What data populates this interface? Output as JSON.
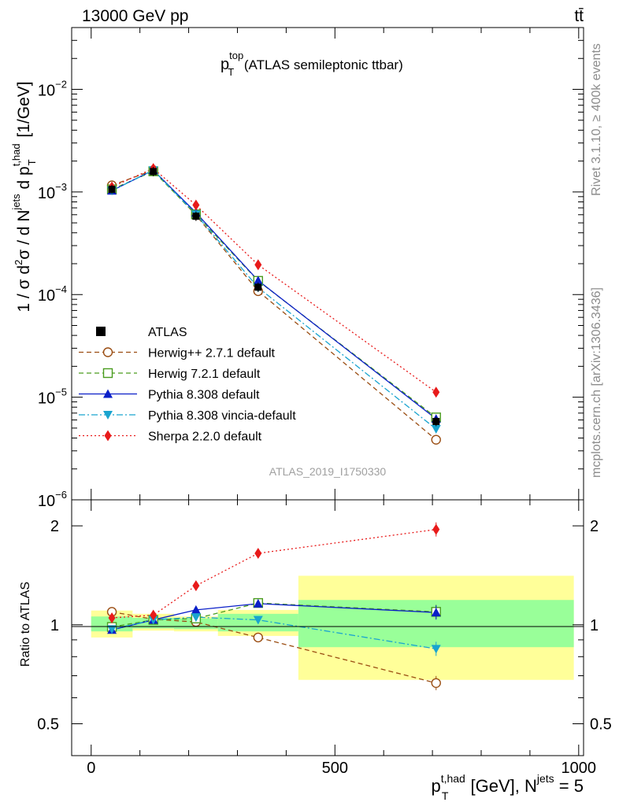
{
  "header": {
    "energy_label": "13000 GeV pp",
    "process_label": "tt̄"
  },
  "side_labels": {
    "rivet": "Rivet 3.1.10, ≥ 400k events",
    "mcplots": "mcplots.cern.ch [arXiv:1306.3436]"
  },
  "chart_data": [
    {
      "type": "line",
      "panel": "main",
      "title": {
        "base": "p",
        "sup": "top",
        "sub": "T",
        "rest": " (ATLAS semileptonic ttbar)"
      },
      "watermark": "ATLAS_2019_I1750330",
      "yscale": "log",
      "ylim": [
        1e-06,
        0.04
      ],
      "xlim": [
        -40,
        1010
      ],
      "ylabel": {
        "part1": "1 / σ d",
        "sup2": "2",
        "part2": "σ /  d N",
        "sup_jets": "jets",
        "part3": " d p",
        "sup_thad": "t,had",
        "sub_T": "T",
        "part4": " [1/GeV]"
      },
      "y_ticks": [
        {
          "value": 1e-06,
          "base": "10",
          "exp": "−6"
        },
        {
          "value": 1e-05,
          "base": "10",
          "exp": "−5"
        },
        {
          "value": 0.0001,
          "base": "10",
          "exp": "−4"
        },
        {
          "value": 0.001,
          "base": "10",
          "exp": "−3"
        },
        {
          "value": 0.01,
          "base": "10",
          "exp": "−2"
        }
      ],
      "x": [
        42.5,
        127.5,
        215,
        342.5,
        707.5
      ],
      "x_edges": [
        0,
        85,
        170,
        260,
        425,
        990
      ],
      "data": {
        "name": "ATLAS",
        "values": [
          0.00106,
          0.00158,
          0.00058,
          0.000118,
          5.8e-06
        ]
      },
      "series": [
        {
          "name": "Herwig++ 2.7.1 default",
          "color": "#9a4d12",
          "marker": "open-circle",
          "dash": "dashed",
          "values": [
            0.00116,
            0.00163,
            0.000595,
            0.000108,
            3.85e-06
          ]
        },
        {
          "name": "Herwig 7.2.1 default",
          "color": "#4a9c1e",
          "marker": "open-square",
          "dash": "dashed",
          "values": [
            0.00106,
            0.00159,
            0.000605,
            0.000136,
            6.35e-06
          ]
        },
        {
          "name": "Pythia 8.308 default",
          "color": "#0a1fc8",
          "marker": "triangle-up",
          "dash": "solid",
          "values": [
            0.00103,
            0.00163,
            0.000628,
            0.000137,
            6.15e-06
          ]
        },
        {
          "name": "Pythia 8.308 vincia-default",
          "color": "#19a4cf",
          "marker": "triangle-down",
          "dash": "dashdot",
          "values": [
            0.00103,
            0.00163,
            0.000605,
            0.000117,
            4.9e-06
          ]
        },
        {
          "name": "Sherpa 2.2.0 default",
          "color": "#e81a1a",
          "marker": "diamond",
          "dash": "dotted",
          "values": [
            0.00112,
            0.00169,
            0.000745,
            0.000195,
            1.12e-05
          ]
        }
      ]
    },
    {
      "type": "line",
      "panel": "ratio",
      "ylabel": "Ratio to ATLAS",
      "yscale": "log",
      "ylim": [
        0.4,
        2.4
      ],
      "y_ticks": [
        0.5,
        1,
        2
      ],
      "x_ticks": [
        0,
        500,
        1000
      ],
      "xlabel": {
        "base": "p",
        "sup": "t,had",
        "sub": "T",
        "unit": " [GeV], N",
        "sup2": "jets",
        "tail": " = 5"
      },
      "bands": {
        "green": [
          [
            0.955,
            1.06
          ],
          [
            0.975,
            1.05
          ],
          [
            0.97,
            1.045
          ],
          [
            0.955,
            1.08
          ],
          [
            0.855,
            1.19
          ]
        ],
        "yellow": [
          [
            0.915,
            1.105
          ],
          [
            0.96,
            1.08
          ],
          [
            0.955,
            1.06
          ],
          [
            0.925,
            1.11
          ],
          [
            0.68,
            1.41
          ]
        ]
      },
      "series": [
        {
          "name": "Herwig++ 2.7.1 default",
          "values": [
            1.095,
            1.04,
            1.02,
            0.915,
            0.665
          ]
        },
        {
          "name": "Herwig 7.2.1 default",
          "values": [
            0.985,
            1.035,
            1.045,
            1.165,
            1.095
          ]
        },
        {
          "name": "Pythia 8.308 default",
          "values": [
            0.965,
            1.035,
            1.11,
            1.16,
            1.09
          ]
        },
        {
          "name": "Pythia 8.308 vincia-default",
          "values": [
            0.97,
            1.035,
            1.055,
            1.035,
            0.845
          ]
        },
        {
          "name": "Sherpa 2.2.0 default",
          "values": [
            1.05,
            1.07,
            1.315,
            1.65,
            1.95
          ]
        }
      ]
    }
  ]
}
